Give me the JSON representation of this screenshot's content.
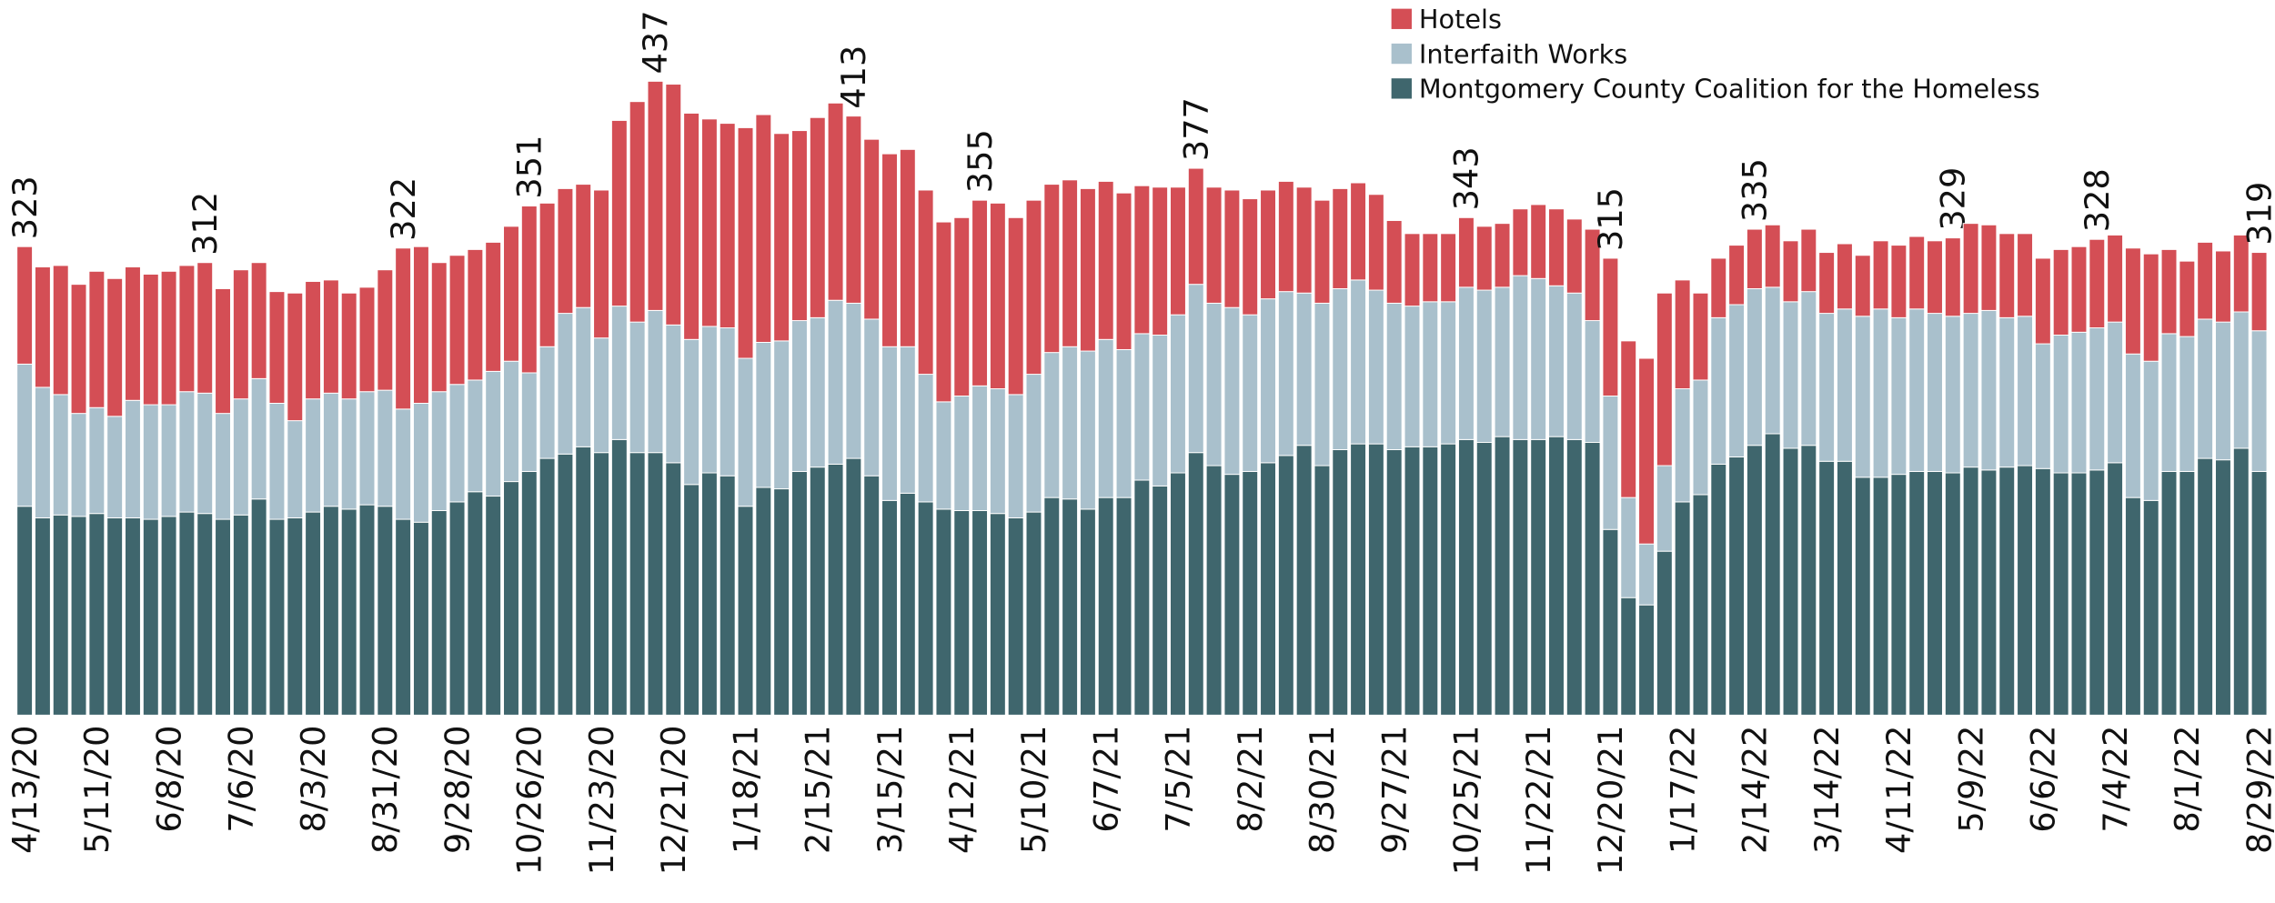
{
  "chart_data": {
    "type": "stacked_bar",
    "categories": [
      "4/13/20",
      null,
      null,
      null,
      "5/11/20",
      null,
      null,
      null,
      "6/8/20",
      null,
      null,
      null,
      "7/6/20",
      null,
      null,
      null,
      "8/3/20",
      null,
      null,
      null,
      "8/31/20",
      null,
      null,
      null,
      "9/28/20",
      null,
      null,
      null,
      "10/26/20",
      null,
      null,
      null,
      "11/23/20",
      null,
      null,
      null,
      "12/21/20",
      null,
      null,
      null,
      "1/18/21",
      null,
      null,
      null,
      "2/15/21",
      null,
      null,
      null,
      "3/15/21",
      null,
      null,
      null,
      "4/12/21",
      null,
      null,
      null,
      "5/10/21",
      null,
      null,
      null,
      "6/7/21",
      null,
      null,
      null,
      "7/5/21",
      null,
      null,
      null,
      "8/2/21",
      null,
      null,
      null,
      "8/30/21",
      null,
      null,
      null,
      "9/27/21",
      null,
      null,
      null,
      "10/25/21",
      null,
      null,
      null,
      "11/22/21",
      null,
      null,
      null,
      "12/20/21",
      null,
      null,
      null,
      "1/17/22",
      null,
      null,
      null,
      "2/14/22",
      null,
      null,
      null,
      "3/14/22",
      null,
      null,
      null,
      "4/11/22",
      null,
      null,
      null,
      "5/9/22",
      null,
      null,
      null,
      "6/6/22",
      null,
      null,
      null,
      "7/4/22",
      null,
      null,
      null,
      "8/1/22",
      null,
      null,
      null,
      "8/29/22"
    ],
    "series": [
      {
        "name": "Montgomery County Coalition for the Homeless",
        "color": "#3f666d",
        "values": [
          144,
          136,
          138,
          137,
          139,
          136,
          136,
          135,
          137,
          140,
          139,
          135,
          138,
          149,
          135,
          136,
          140,
          144,
          142,
          145,
          144,
          135,
          133,
          141,
          147,
          154,
          151,
          161,
          168,
          177,
          180,
          185,
          181,
          190,
          181,
          181,
          174,
          159,
          167,
          165,
          144,
          157,
          156,
          168,
          171,
          173,
          177,
          165,
          148,
          153,
          147,
          142,
          141,
          141,
          139,
          136,
          140,
          150,
          149,
          142,
          150,
          150,
          162,
          158,
          167,
          181,
          172,
          166,
          168,
          174,
          179,
          186,
          172,
          183,
          187,
          187,
          183,
          185,
          185,
          187,
          190,
          188,
          192,
          190,
          190,
          192,
          190,
          188,
          128,
          81,
          76,
          113,
          147,
          152,
          173,
          178,
          186,
          194,
          184,
          186,
          175,
          175,
          164,
          164,
          166,
          168,
          168,
          167,
          171,
          169,
          171,
          172,
          170,
          167,
          167,
          169,
          174,
          150,
          148,
          168,
          168,
          177,
          176,
          184,
          168
        ]
      },
      {
        "name": "Interfaith Works",
        "color": "#a9c0cc",
        "values": [
          98,
          90,
          83,
          71,
          73,
          70,
          81,
          79,
          77,
          83,
          83,
          73,
          80,
          83,
          80,
          67,
          78,
          78,
          76,
          78,
          80,
          76,
          82,
          82,
          81,
          77,
          86,
          83,
          68,
          77,
          97,
          96,
          79,
          92,
          90,
          98,
          95,
          100,
          101,
          102,
          102,
          100,
          102,
          104,
          103,
          113,
          107,
          108,
          106,
          101,
          88,
          74,
          79,
          86,
          86,
          85,
          95,
          100,
          105,
          109,
          109,
          102,
          101,
          104,
          109,
          116,
          112,
          115,
          108,
          113,
          113,
          105,
          112,
          111,
          113,
          106,
          101,
          97,
          100,
          98,
          105,
          105,
          103,
          113,
          111,
          104,
          101,
          84,
          92,
          69,
          42,
          59,
          78,
          79,
          101,
          105,
          108,
          101,
          101,
          106,
          102,
          105,
          111,
          116,
          108,
          112,
          109,
          108,
          106,
          110,
          103,
          103,
          86,
          95,
          97,
          98,
          97,
          99,
          96,
          95,
          93,
          96,
          95,
          94,
          97
        ]
      },
      {
        "name": "Hotels",
        "color": "#d44e55",
        "values": [
          81,
          83,
          89,
          89,
          94,
          95,
          92,
          90,
          92,
          87,
          90,
          86,
          89,
          80,
          77,
          88,
          81,
          78,
          73,
          72,
          83,
          111,
          108,
          89,
          89,
          90,
          89,
          93,
          115,
          99,
          86,
          85,
          102,
          128,
          152,
          158,
          166,
          156,
          143,
          141,
          159,
          157,
          143,
          131,
          138,
          136,
          129,
          124,
          133,
          136,
          127,
          124,
          123,
          128,
          128,
          122,
          120,
          116,
          115,
          112,
          109,
          108,
          102,
          102,
          88,
          80,
          80,
          81,
          80,
          75,
          76,
          73,
          71,
          69,
          67,
          66,
          57,
          50,
          47,
          47,
          48,
          44,
          44,
          46,
          51,
          53,
          51,
          63,
          95,
          108,
          128,
          119,
          75,
          60,
          41,
          41,
          41,
          43,
          42,
          43,
          42,
          45,
          42,
          47,
          50,
          50,
          50,
          54,
          62,
          59,
          58,
          57,
          59,
          59,
          59,
          61,
          60,
          73,
          74,
          58,
          52,
          53,
          49,
          53,
          54
        ]
      }
    ],
    "totals": [
      323,
      null,
      null,
      null,
      null,
      null,
      null,
      null,
      null,
      null,
      312,
      null,
      null,
      null,
      null,
      null,
      null,
      null,
      null,
      null,
      null,
      322,
      null,
      null,
      null,
      null,
      null,
      null,
      351,
      null,
      null,
      null,
      null,
      null,
      null,
      437,
      null,
      null,
      null,
      null,
      null,
      null,
      null,
      null,
      null,
      null,
      413,
      null,
      null,
      null,
      null,
      null,
      null,
      355,
      null,
      null,
      null,
      null,
      null,
      null,
      null,
      null,
      null,
      null,
      null,
      377,
      null,
      null,
      null,
      null,
      null,
      null,
      null,
      null,
      null,
      null,
      null,
      null,
      null,
      null,
      343,
      null,
      null,
      null,
      null,
      null,
      null,
      null,
      315,
      null,
      null,
      null,
      null,
      null,
      null,
      null,
      335,
      null,
      null,
      null,
      null,
      null,
      null,
      null,
      null,
      null,
      null,
      329,
      null,
      null,
      null,
      null,
      null,
      null,
      null,
      328,
      null,
      null,
      null,
      null,
      null,
      null,
      null,
      null,
      319
    ],
    "ylim": [
      0,
      493
    ]
  }
}
